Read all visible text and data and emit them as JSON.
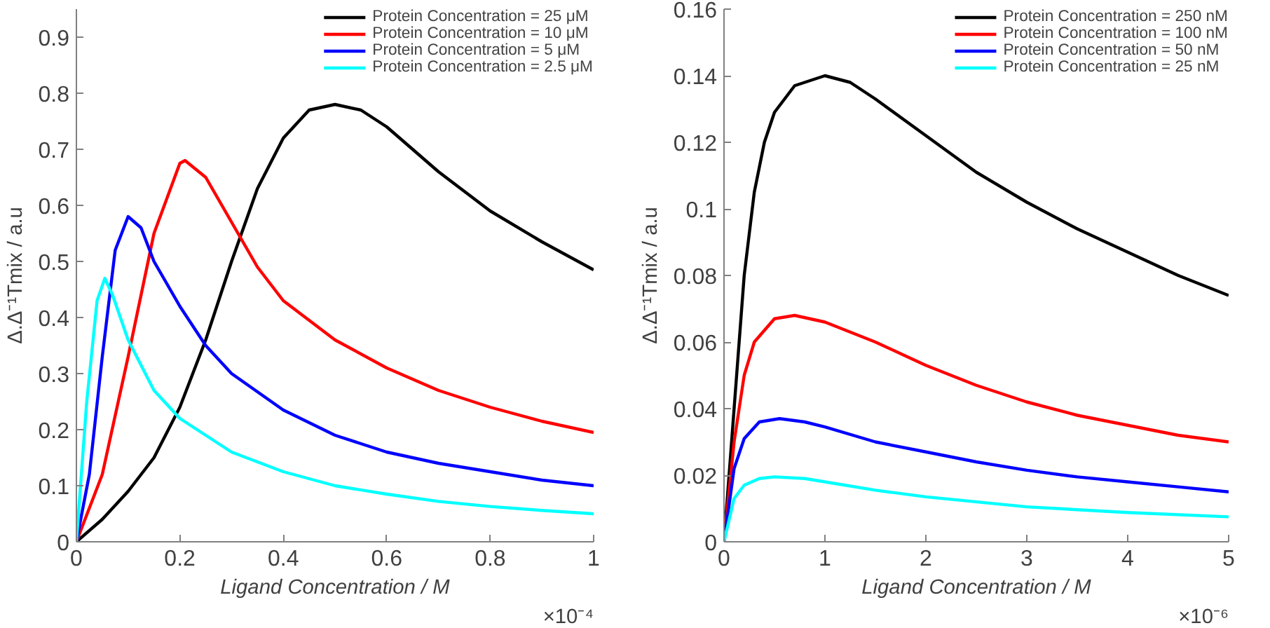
{
  "chart_data": [
    {
      "type": "line",
      "xlabel": "Ligand Concentration / M",
      "ylabel": "Δ.Δ⁻¹Tmix / a.u",
      "xlim": [
        0,
        1
      ],
      "xticks": [
        0,
        0.2,
        0.4,
        0.6,
        0.8,
        1
      ],
      "ylim": [
        0,
        0.95
      ],
      "yticks": [
        0,
        0.1,
        0.2,
        0.3,
        0.4,
        0.5,
        0.6,
        0.7,
        0.8,
        0.9
      ],
      "grid": false,
      "legend": "top right",
      "line_style": "solid",
      "annotations": [
        "×10⁻⁴"
      ],
      "series": [
        {
          "name": "Protein Concentration = 25 μM",
          "color": "#000000",
          "x": [
            0,
            0.05,
            0.1,
            0.15,
            0.2,
            0.25,
            0.3,
            0.35,
            0.4,
            0.45,
            0.5,
            0.55,
            0.6,
            0.7,
            0.8,
            0.9,
            1.0
          ],
          "values": [
            0,
            0.04,
            0.09,
            0.15,
            0.24,
            0.36,
            0.5,
            0.63,
            0.72,
            0.77,
            0.78,
            0.77,
            0.74,
            0.66,
            0.59,
            0.535,
            0.485
          ]
        },
        {
          "name": "Protein Concentration = 10 μM",
          "color": "#ff0000",
          "x": [
            0,
            0.05,
            0.1,
            0.15,
            0.2,
            0.21,
            0.25,
            0.3,
            0.35,
            0.4,
            0.5,
            0.6,
            0.7,
            0.8,
            0.9,
            1.0
          ],
          "values": [
            0,
            0.12,
            0.33,
            0.55,
            0.675,
            0.68,
            0.65,
            0.57,
            0.49,
            0.43,
            0.36,
            0.31,
            0.27,
            0.24,
            0.215,
            0.195
          ]
        },
        {
          "name": "Protein Concentration = 5 μM",
          "color": "#0000ff",
          "x": [
            0,
            0.025,
            0.05,
            0.075,
            0.1,
            0.125,
            0.15,
            0.2,
            0.25,
            0.3,
            0.4,
            0.5,
            0.6,
            0.7,
            0.8,
            0.9,
            1.0
          ],
          "values": [
            0,
            0.12,
            0.33,
            0.52,
            0.58,
            0.56,
            0.5,
            0.42,
            0.35,
            0.3,
            0.235,
            0.19,
            0.16,
            0.14,
            0.125,
            0.11,
            0.1
          ]
        },
        {
          "name": "Protein Concentration = 2.5 μM",
          "color": "#00ffff",
          "x": [
            0,
            0.02,
            0.04,
            0.055,
            0.07,
            0.1,
            0.15,
            0.2,
            0.3,
            0.4,
            0.5,
            0.6,
            0.7,
            0.8,
            0.9,
            1.0
          ],
          "values": [
            0,
            0.25,
            0.43,
            0.47,
            0.44,
            0.36,
            0.27,
            0.22,
            0.16,
            0.125,
            0.1,
            0.085,
            0.072,
            0.063,
            0.056,
            0.05
          ]
        }
      ]
    },
    {
      "type": "line",
      "xlabel": "Ligand Concentration / M",
      "ylabel": "Δ.Δ⁻¹Tmix / a.u",
      "xlim": [
        0,
        5
      ],
      "xticks": [
        0,
        1,
        2,
        3,
        4,
        5
      ],
      "ylim": [
        0,
        0.16
      ],
      "yticks": [
        0,
        0.02,
        0.04,
        0.06,
        0.08,
        0.1,
        0.12,
        0.14,
        0.16
      ],
      "grid": false,
      "legend": "top right",
      "line_style": "solid",
      "annotations": [
        "×10⁻⁶"
      ],
      "series": [
        {
          "name": "Protein Concentration = 250 nM",
          "color": "#000000",
          "x": [
            0,
            0.1,
            0.2,
            0.3,
            0.4,
            0.5,
            0.7,
            1.0,
            1.25,
            1.5,
            2.0,
            2.5,
            3.0,
            3.5,
            4.0,
            4.5,
            5.0
          ],
          "values": [
            0,
            0.04,
            0.08,
            0.105,
            0.12,
            0.129,
            0.137,
            0.14,
            0.138,
            0.133,
            0.122,
            0.111,
            0.102,
            0.094,
            0.087,
            0.08,
            0.074
          ]
        },
        {
          "name": "Protein Concentration = 100 nM",
          "color": "#ff0000",
          "x": [
            0,
            0.1,
            0.2,
            0.3,
            0.5,
            0.7,
            1.0,
            1.5,
            2.0,
            2.5,
            3.0,
            3.5,
            4.0,
            4.5,
            5.0
          ],
          "values": [
            0,
            0.03,
            0.05,
            0.06,
            0.067,
            0.068,
            0.066,
            0.06,
            0.053,
            0.047,
            0.042,
            0.038,
            0.035,
            0.032,
            0.03
          ]
        },
        {
          "name": "Protein Concentration = 50 nM",
          "color": "#0000ff",
          "x": [
            0,
            0.1,
            0.2,
            0.35,
            0.55,
            0.8,
            1.0,
            1.5,
            2.0,
            2.5,
            3.0,
            3.5,
            4.0,
            4.5,
            5.0
          ],
          "values": [
            0,
            0.022,
            0.031,
            0.036,
            0.037,
            0.036,
            0.0345,
            0.03,
            0.027,
            0.024,
            0.0215,
            0.0195,
            0.018,
            0.0165,
            0.015
          ]
        },
        {
          "name": "Protein Concentration = 25 nM",
          "color": "#00ffff",
          "x": [
            0,
            0.1,
            0.2,
            0.35,
            0.5,
            0.8,
            1.0,
            1.5,
            2.0,
            3.0,
            4.0,
            5.0
          ],
          "values": [
            0,
            0.013,
            0.017,
            0.019,
            0.0195,
            0.019,
            0.018,
            0.0155,
            0.0135,
            0.0105,
            0.0088,
            0.0075
          ]
        }
      ]
    }
  ]
}
